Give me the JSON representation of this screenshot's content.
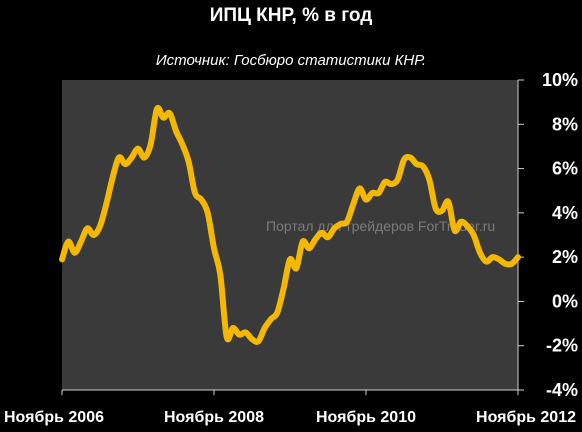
{
  "header": {
    "title": "ИПЦ КНР, % в год",
    "subtitle": "Источник: Госбюро статистики КНР."
  },
  "watermark": "Портал для трейдеров ForTrader.ru",
  "colors": {
    "background": "#000000",
    "plot_area": "#3a3a3a",
    "line": "#f5b800",
    "text": "#ffffff"
  },
  "chart_data": {
    "type": "line",
    "title": "ИПЦ КНР, % в год",
    "subtitle": "Источник: Госбюро статистики КНР.",
    "xlabel": "",
    "ylabel": "",
    "ylim": [
      -4,
      10
    ],
    "y_ticks": [
      {
        "value": 10,
        "label": "10%"
      },
      {
        "value": 8,
        "label": "8%"
      },
      {
        "value": 6,
        "label": "6%"
      },
      {
        "value": 4,
        "label": "4%"
      },
      {
        "value": 2,
        "label": "2%"
      },
      {
        "value": 0,
        "label": "0%"
      },
      {
        "value": -2,
        "label": "-2%"
      },
      {
        "value": -4,
        "label": "-4%"
      }
    ],
    "x_ticks": [
      {
        "index": 0,
        "label": "Ноябрь 2006"
      },
      {
        "index": 24,
        "label": "Ноябрь 2008"
      },
      {
        "index": 48,
        "label": "Ноябрь 2010"
      },
      {
        "index": 72,
        "label": "Ноябрь 2012"
      }
    ],
    "grid": false,
    "legend": "none",
    "series": [
      {
        "values": [
          1.9,
          2.7,
          2.2,
          2.7,
          3.3,
          3.0,
          3.4,
          4.4,
          5.6,
          6.5,
          6.2,
          6.5,
          6.9,
          6.5,
          7.1,
          8.7,
          8.3,
          8.5,
          7.7,
          7.1,
          6.3,
          4.9,
          4.6,
          4.0,
          2.4,
          1.2,
          -1.6,
          -1.2,
          -1.5,
          -1.4,
          -1.7,
          -1.8,
          -1.2,
          -0.8,
          -0.5,
          0.6,
          1.9,
          1.5,
          2.7,
          2.4,
          2.8,
          3.1,
          2.9,
          3.3,
          3.5,
          3.6,
          4.4,
          5.1,
          4.6,
          4.9,
          4.9,
          5.4,
          5.3,
          5.5,
          6.4,
          6.5,
          6.2,
          6.1,
          5.5,
          4.2,
          4.1,
          4.5,
          3.2,
          3.6,
          3.4,
          3.0,
          2.2,
          1.8,
          2.0,
          1.9,
          1.7,
          1.7,
          2.0
        ]
      }
    ]
  }
}
